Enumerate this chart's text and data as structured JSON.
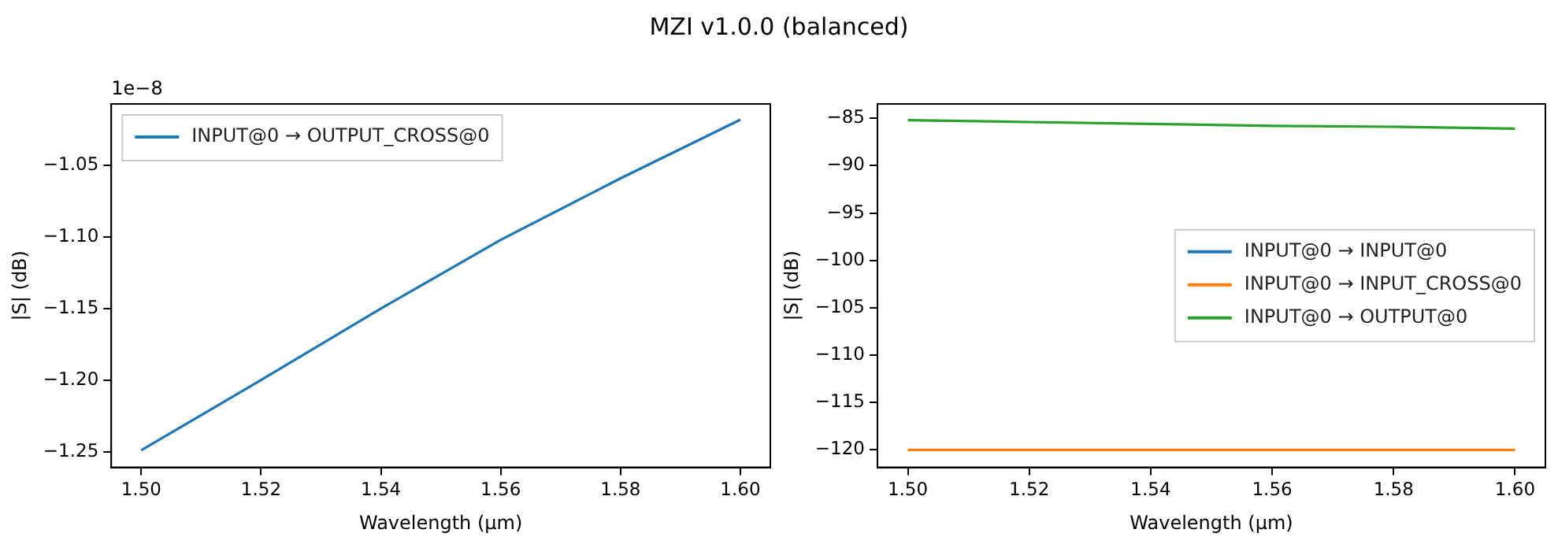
{
  "chart_data": [
    {
      "type": "line",
      "title": "MZI v1.0.0 (balanced)",
      "xlabel": "Wavelength (µm)",
      "ylabel": "|S| (dB)",
      "x": [
        1.5,
        1.52,
        1.54,
        1.56,
        1.58,
        1.6
      ],
      "series": [
        {
          "name": "INPUT@0 → OUTPUT_CROSS@0",
          "color": "#1f77b4",
          "values": [
            -1.249,
            -1.2,
            -1.15,
            -1.102,
            -1.059,
            -1.018
          ]
        }
      ],
      "xlim": [
        1.495,
        1.605
      ],
      "ylim": [
        -1.261,
        -1.007
      ],
      "xticks": [
        {
          "value": 1.5,
          "label": "1.50"
        },
        {
          "value": 1.52,
          "label": "1.52"
        },
        {
          "value": 1.54,
          "label": "1.54"
        },
        {
          "value": 1.56,
          "label": "1.56"
        },
        {
          "value": 1.58,
          "label": "1.58"
        },
        {
          "value": 1.6,
          "label": "1.60"
        }
      ],
      "yticks": [
        {
          "value": -1.25,
          "label": "−1.25"
        },
        {
          "value": -1.2,
          "label": "−1.20"
        },
        {
          "value": -1.15,
          "label": "−1.15"
        },
        {
          "value": -1.1,
          "label": "−1.10"
        },
        {
          "value": -1.05,
          "label": "−1.05"
        }
      ],
      "annotations": [
        "1e−8"
      ],
      "legend": "top left",
      "grid": false,
      "marker": "none",
      "line_style": "solid"
    },
    {
      "type": "line",
      "xlabel": "Wavelength (µm)",
      "ylabel": "|S| (dB)",
      "x": [
        1.5,
        1.52,
        1.54,
        1.56,
        1.58,
        1.6
      ],
      "series": [
        {
          "name": "INPUT@0 → INPUT@0",
          "color": "#1f77b4",
          "values": [
            null,
            null,
            null,
            null,
            null,
            null
          ]
        },
        {
          "name": "INPUT@0 → INPUT_CROSS@0",
          "color": "#ff7f0e",
          "values": [
            -120,
            -120,
            -120,
            -120,
            -120,
            -120
          ]
        },
        {
          "name": "INPUT@0 → OUTPUT@0",
          "color": "#2ca02c",
          "values": [
            -85.2,
            -85.4,
            -85.6,
            -85.8,
            -85.9,
            -86.1
          ]
        }
      ],
      "xlim": [
        1.495,
        1.605
      ],
      "ylim": [
        -121.84,
        -83.49
      ],
      "xticks": [
        {
          "value": 1.5,
          "label": "1.50"
        },
        {
          "value": 1.52,
          "label": "1.52"
        },
        {
          "value": 1.54,
          "label": "1.54"
        },
        {
          "value": 1.56,
          "label": "1.56"
        },
        {
          "value": 1.58,
          "label": "1.58"
        },
        {
          "value": 1.6,
          "label": "1.60"
        }
      ],
      "yticks": [
        {
          "value": -120,
          "label": "−120"
        },
        {
          "value": -115,
          "label": "−115"
        },
        {
          "value": -110,
          "label": "−110"
        },
        {
          "value": -105,
          "label": "−105"
        },
        {
          "value": -100,
          "label": "−100"
        },
        {
          "value": -95,
          "label": "−95"
        },
        {
          "value": -90,
          "label": "−90"
        },
        {
          "value": -85,
          "label": "−85"
        }
      ],
      "legend": "right",
      "grid": false,
      "marker": "none",
      "line_style": "solid"
    }
  ]
}
